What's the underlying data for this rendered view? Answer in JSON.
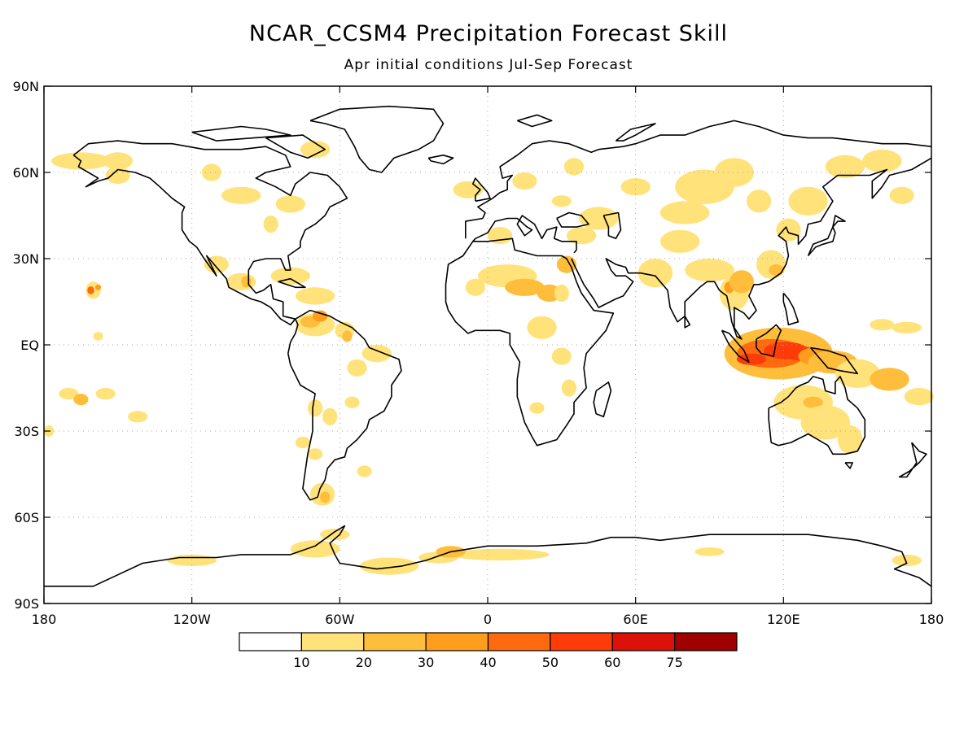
{
  "title": "NCAR_CCSM4 Precipitation Forecast Skill",
  "subtitle": "Apr initial conditions   Jul-Sep Forecast",
  "map": {
    "projection": "equirectangular",
    "lon_range": [
      -180,
      180
    ],
    "lat_range": [
      -90,
      90
    ],
    "grid": "dotted",
    "lat_labels": [
      {
        "lat": 90,
        "label": "90N"
      },
      {
        "lat": 60,
        "label": "60N"
      },
      {
        "lat": 30,
        "label": "30N"
      },
      {
        "lat": 0,
        "label": "EQ"
      },
      {
        "lat": -30,
        "label": "30S"
      },
      {
        "lat": -60,
        "label": "60S"
      },
      {
        "lat": -90,
        "label": "90S"
      }
    ],
    "lon_labels": [
      {
        "lon": -180,
        "label": "180"
      },
      {
        "lon": -120,
        "label": "120W"
      },
      {
        "lon": -60,
        "label": "60W"
      },
      {
        "lon": 0,
        "label": "0"
      },
      {
        "lon": 60,
        "label": "60E"
      },
      {
        "lon": 120,
        "label": "120E"
      },
      {
        "lon": 180,
        "label": "180"
      }
    ]
  },
  "colorbar": {
    "colors": [
      "#ffffff",
      "#ffe27a",
      "#ffbd3c",
      "#ff9e1d",
      "#ff6a0f",
      "#ff3b0a",
      "#dc1208",
      "#a00000"
    ],
    "labels": [
      "10",
      "20",
      "30",
      "40",
      "50",
      "60",
      "75"
    ]
  }
}
